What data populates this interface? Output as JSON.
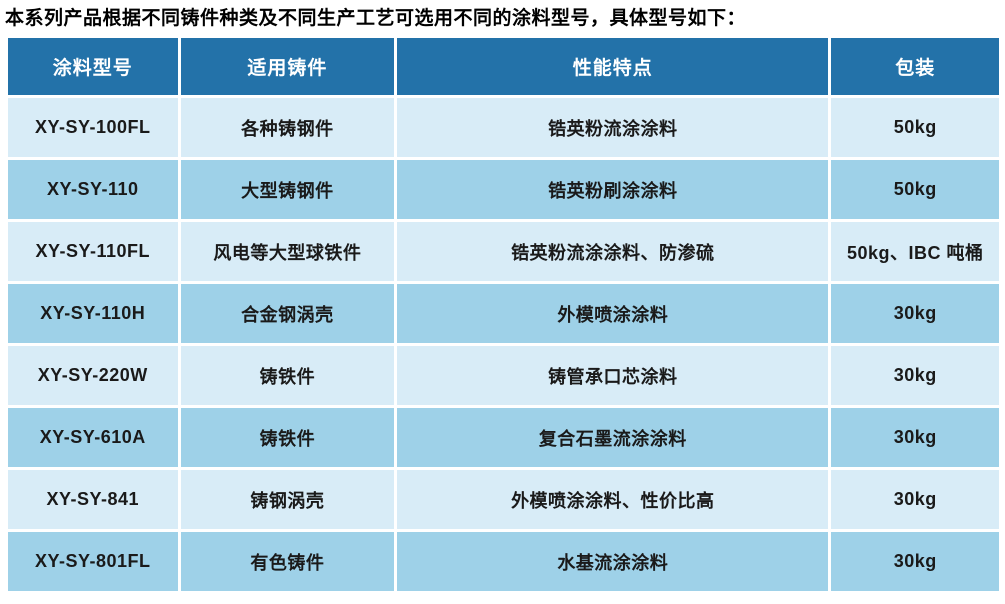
{
  "intro": "本系列产品根据不同铸件种类及不同生产工艺可选用不同的涂料型号，具体型号如下：",
  "table": {
    "headers": [
      "涂料型号",
      "适用铸件",
      "性能特点",
      "包装"
    ],
    "rows": [
      [
        "XY-SY-100FL",
        "各种铸钢件",
        "锆英粉流涂涂料",
        "50kg"
      ],
      [
        "XY-SY-110",
        "大型铸钢件",
        "锆英粉刷涂涂料",
        "50kg"
      ],
      [
        "XY-SY-110FL",
        "风电等大型球铁件",
        "锆英粉流涂涂料、防渗硫",
        "50kg、IBC 吨桶"
      ],
      [
        "XY-SY-110H",
        "合金钢涡壳",
        "外模喷涂涂料",
        "30kg"
      ],
      [
        "XY-SY-220W",
        "铸铁件",
        "铸管承口芯涂料",
        "30kg"
      ],
      [
        "XY-SY-610A",
        "铸铁件",
        "复合石墨流涂涂料",
        "30kg"
      ],
      [
        "XY-SY-841",
        "铸钢涡壳",
        "外模喷涂涂料、性价比高",
        "30kg"
      ],
      [
        "XY-SY-801FL",
        "有色铸件",
        "水基流涂涂料",
        "30kg"
      ]
    ]
  },
  "colors": {
    "header_bg": "#2372a9",
    "header_text": "#ffffff",
    "row_light_bg": "#d8ecf7",
    "row_medium_bg": "#9ed1e8",
    "cell_text": "#1a1a1a"
  }
}
